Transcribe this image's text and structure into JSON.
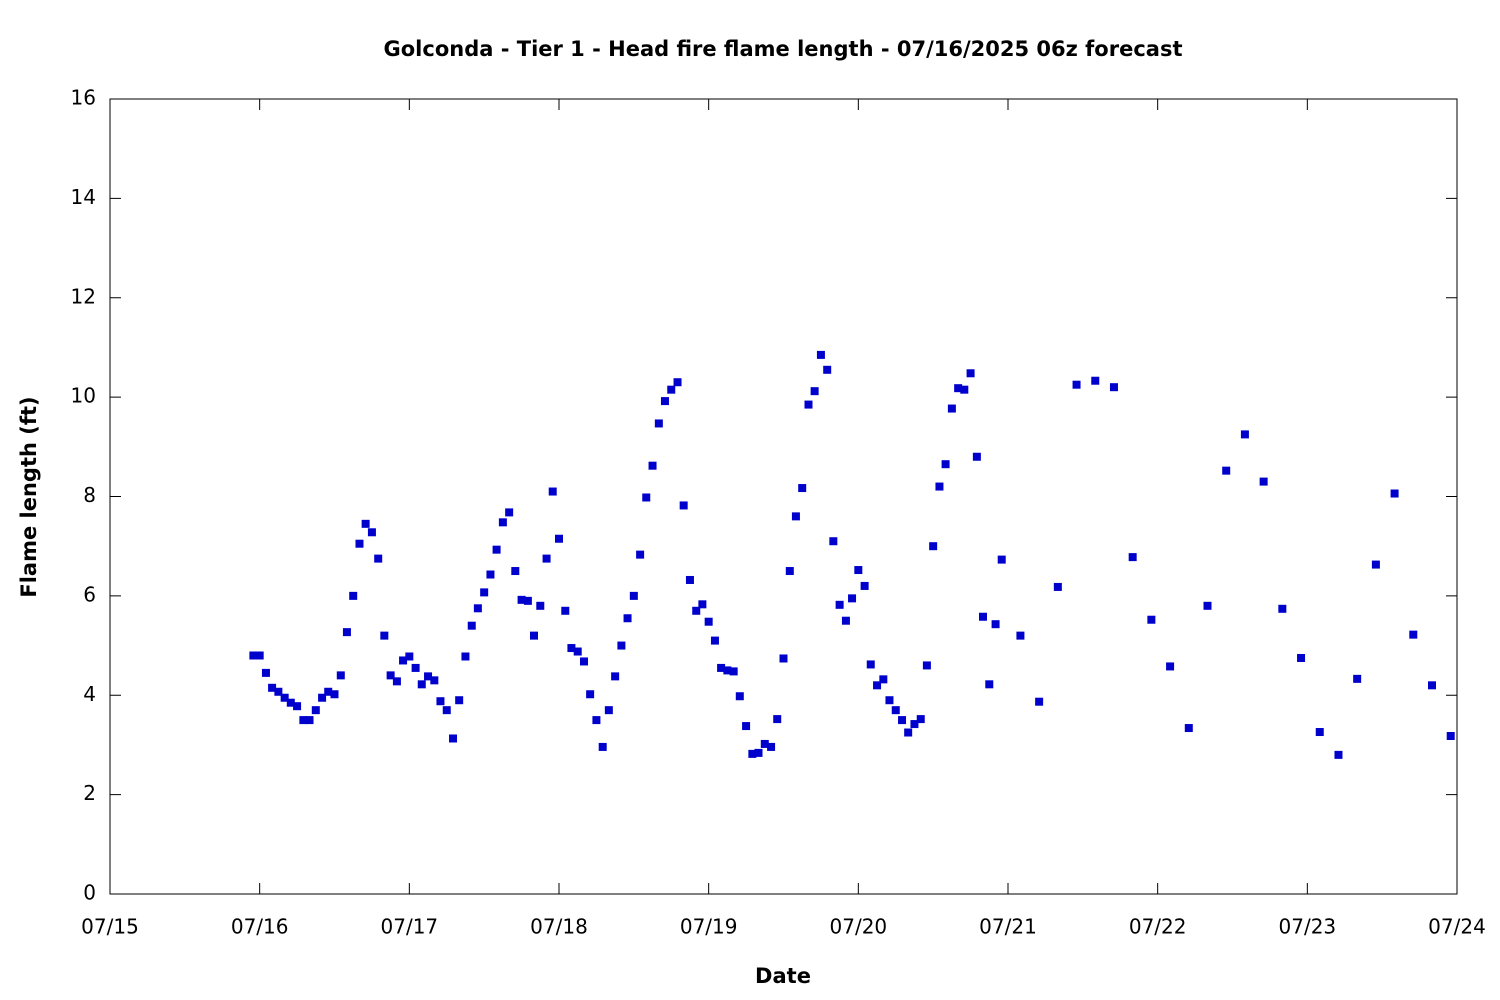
{
  "chart_data": {
    "type": "scatter",
    "title": "Golconda - Tier 1 - Head fire flame length - 07/16/2025 06z forecast",
    "x_label": "Date",
    "y_label": "Flame length (ft)",
    "color": "#0000cc",
    "xlim": [
      0,
      9
    ],
    "xticks": [
      {
        "value": 0,
        "label": "07/15"
      },
      {
        "value": 1,
        "label": "07/16"
      },
      {
        "value": 2,
        "label": "07/17"
      },
      {
        "value": 3,
        "label": "07/18"
      },
      {
        "value": 4,
        "label": "07/19"
      },
      {
        "value": 5,
        "label": "07/20"
      },
      {
        "value": 6,
        "label": "07/21"
      },
      {
        "value": 7,
        "label": "07/22"
      },
      {
        "value": 8,
        "label": "07/23"
      },
      {
        "value": 9,
        "label": "07/24"
      }
    ],
    "ylim": [
      0,
      16
    ],
    "yticks": [
      0,
      2,
      4,
      6,
      8,
      10,
      12,
      14,
      16
    ],
    "x": [
      0.958,
      1,
      1.042,
      1.083,
      1.125,
      1.167,
      1.208,
      1.25,
      1.292,
      1.333,
      1.375,
      1.417,
      1.458,
      1.5,
      1.542,
      1.583,
      1.625,
      1.667,
      1.708,
      1.75,
      1.792,
      1.833,
      1.875,
      1.917,
      1.958,
      2,
      2.042,
      2.083,
      2.125,
      2.167,
      2.208,
      2.25,
      2.292,
      2.333,
      2.375,
      2.417,
      2.458,
      2.5,
      2.542,
      2.583,
      2.625,
      2.667,
      2.708,
      2.75,
      2.792,
      2.833,
      2.875,
      2.917,
      2.958,
      3,
      3.042,
      3.083,
      3.125,
      3.167,
      3.208,
      3.25,
      3.292,
      3.333,
      3.375,
      3.417,
      3.458,
      3.5,
      3.542,
      3.583,
      3.625,
      3.667,
      3.708,
      3.75,
      3.792,
      3.833,
      3.875,
      3.917,
      3.958,
      4,
      4.042,
      4.083,
      4.125,
      4.167,
      4.208,
      4.25,
      4.292,
      4.333,
      4.375,
      4.417,
      4.458,
      4.5,
      4.542,
      4.583,
      4.625,
      4.667,
      4.708,
      4.75,
      4.792,
      4.833,
      4.875,
      4.917,
      4.958,
      5,
      5.042,
      5.083,
      5.125,
      5.167,
      5.208,
      5.25,
      5.292,
      5.333,
      5.375,
      5.417,
      5.458,
      5.5,
      5.542,
      5.583,
      5.625,
      5.667,
      5.708,
      5.75,
      5.792,
      5.833,
      5.875,
      5.917,
      5.958,
      6.083,
      6.208,
      6.333,
      6.458,
      6.583,
      6.708,
      6.833,
      6.958,
      7.083,
      7.208,
      7.333,
      7.458,
      7.583,
      7.708,
      7.833,
      7.958,
      8.083,
      8.208,
      8.333,
      8.458,
      8.583,
      8.708,
      8.833,
      8.958
    ],
    "values": [
      4.8,
      4.8,
      4.45,
      4.15,
      4.07,
      3.95,
      3.85,
      3.78,
      3.5,
      3.5,
      3.7,
      3.95,
      4.07,
      4.02,
      4.4,
      5.27,
      6.0,
      7.05,
      7.45,
      7.28,
      6.75,
      5.2,
      4.4,
      4.28,
      4.7,
      4.78,
      4.55,
      4.22,
      4.38,
      4.3,
      3.88,
      3.7,
      3.13,
      3.9,
      4.78,
      5.4,
      5.75,
      6.07,
      6.43,
      6.93,
      7.48,
      7.68,
      6.5,
      5.92,
      5.9,
      5.2,
      5.8,
      6.75,
      8.1,
      7.15,
      5.7,
      4.95,
      4.88,
      4.68,
      4.02,
      3.5,
      2.96,
      3.7,
      4.38,
      5.0,
      5.55,
      6.0,
      6.83,
      7.98,
      8.62,
      9.47,
      9.92,
      10.15,
      10.3,
      7.82,
      6.32,
      5.7,
      5.83,
      5.48,
      5.1,
      4.55,
      4.5,
      4.48,
      3.98,
      3.38,
      2.82,
      2.84,
      3.02,
      2.96,
      3.52,
      4.74,
      6.5,
      7.6,
      8.17,
      9.85,
      10.12,
      10.85,
      10.55,
      7.1,
      5.82,
      5.5,
      5.95,
      6.52,
      6.2,
      4.62,
      4.2,
      4.32,
      3.9,
      3.7,
      3.5,
      3.25,
      3.42,
      3.52,
      4.6,
      7.0,
      8.2,
      8.65,
      9.77,
      10.18,
      10.15,
      10.48,
      8.8,
      5.58,
      4.22,
      5.43,
      6.73,
      5.2,
      3.87,
      6.18,
      10.25,
      10.33,
      10.2,
      6.78,
      5.52,
      4.58,
      3.34,
      5.8,
      8.52,
      9.25,
      8.3,
      5.74,
      4.75,
      3.26,
      2.8,
      4.33,
      6.63,
      8.06,
      5.22,
      4.2,
      3.18
    ]
  }
}
